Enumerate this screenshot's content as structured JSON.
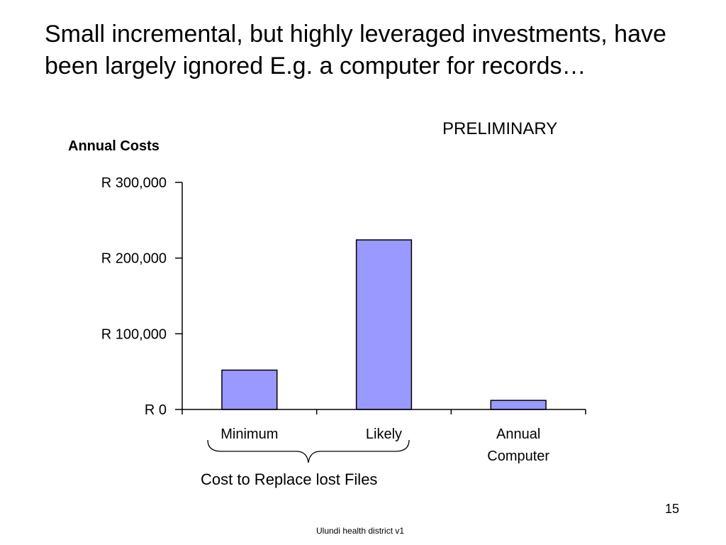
{
  "slide": {
    "title": "Small incremental, but highly leveraged investments, have been largely ignored E.g. a computer for records…",
    "stamp": "PRELIMINARY",
    "page_number": "15",
    "footer": "Ulundi health district v1"
  },
  "chart_data": {
    "type": "bar",
    "ylabel": "Annual Costs",
    "categories": [
      "Minimum",
      "Likely",
      "Annual Computer"
    ],
    "category_lines": [
      [
        "Minimum"
      ],
      [
        "Likely"
      ],
      [
        "Annual",
        "Computer"
      ]
    ],
    "values": [
      52000,
      224000,
      12000
    ],
    "ylim": [
      0,
      300000
    ],
    "yticks": [
      0,
      100000,
      200000,
      300000
    ],
    "ytick_labels": [
      "R 0",
      "R 100,000",
      "R 200,000",
      "R 300,000"
    ],
    "bar_color": "#9999ff",
    "bar_stroke": "#000000",
    "grid": false,
    "legend": "none",
    "annotation": "Cost to Replace lost Files"
  }
}
